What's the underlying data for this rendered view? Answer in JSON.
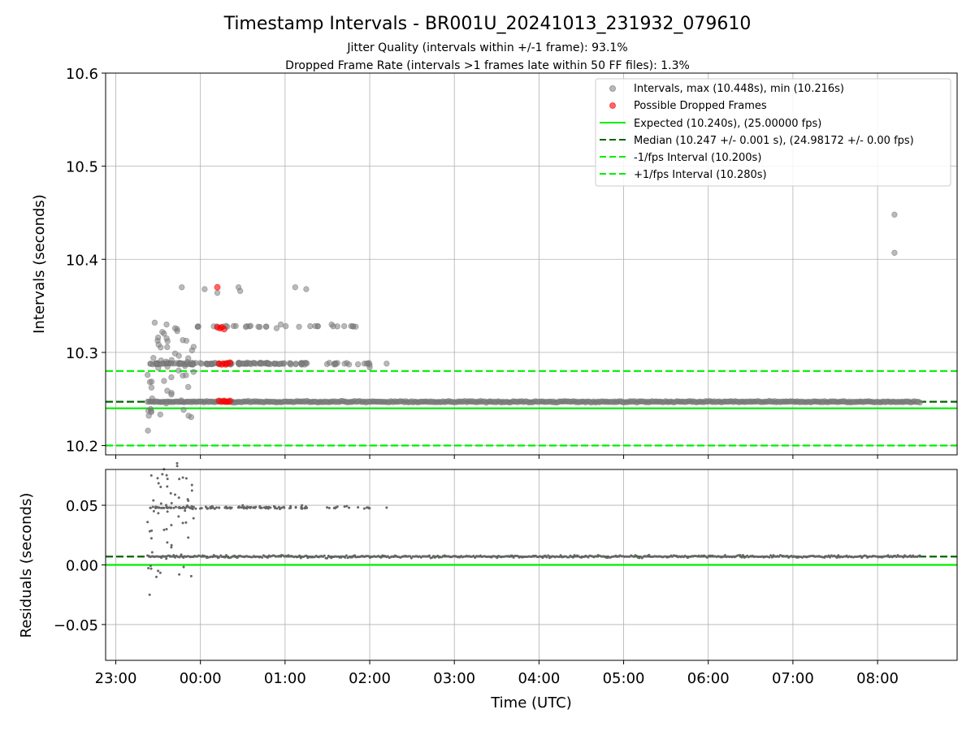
{
  "chart_data": [
    {
      "type": "scatter",
      "title": "Timestamp Intervals - BR001U_20241013_231932_079610",
      "subtitle_lines": [
        "Jitter Quality (intervals within +/-1 frame): 93.1%",
        "Dropped Frame Rate (intervals >1 frames late within 50 FF files): 1.3%"
      ],
      "xlabel": "",
      "ylabel": "Intervals (seconds)",
      "xlim_hours": [
        22.88,
        32.94
      ],
      "ylim": [
        10.19,
        10.6
      ],
      "yticks": [
        10.2,
        10.3,
        10.4,
        10.5,
        10.6
      ],
      "ytick_labels": [
        "10.2",
        "10.3",
        "10.4",
        "10.5",
        "10.6"
      ],
      "grid": true,
      "legend_position": "upper-right",
      "x_range_hours": [
        23.375,
        32.5
      ],
      "series": [
        {
          "name": "Intervals, max (10.448s), min (10.216s)",
          "role": "intervals",
          "color": "#808080",
          "marker": "circle",
          "summary": "dense band near 10.247 s over the whole range; upper bands near 10.288 s and 10.328 s between about 23:20 and 02:10; outliers near 10.368 s and a start-up spread from 10.216 s to 10.332 s",
          "points": [
            [
              23.38,
              10.216
            ],
            [
              23.39,
              10.232
            ],
            [
              23.42,
              10.236
            ],
            [
              23.46,
              10.332
            ],
            [
              23.5,
              10.316
            ],
            [
              23.55,
              10.322
            ],
            [
              23.6,
              10.33
            ],
            [
              23.7,
              10.326
            ],
            [
              23.78,
              10.37
            ],
            [
              23.86,
              10.232
            ],
            [
              23.92,
              10.306
            ],
            [
              24.05,
              10.368
            ],
            [
              24.2,
              10.364
            ],
            [
              24.45,
              10.37
            ],
            [
              24.47,
              10.366
            ],
            [
              25.12,
              10.37
            ],
            [
              25.25,
              10.368
            ],
            [
              24.9,
              10.326
            ],
            [
              24.95,
              10.33
            ],
            [
              25.55,
              10.33
            ],
            [
              25.8,
              10.328
            ],
            [
              26.0,
              10.284
            ],
            [
              26.2,
              10.288
            ],
            [
              32.2,
              10.448
            ],
            [
              32.2,
              10.407
            ]
          ]
        },
        {
          "name": "Possible Dropped Frames",
          "role": "dropped",
          "color": "#ff0000",
          "marker": "circle",
          "points": [
            [
              24.2,
              10.37
            ],
            [
              24.2,
              10.327
            ],
            [
              24.23,
              10.326
            ],
            [
              24.25,
              10.327
            ],
            [
              24.28,
              10.325
            ],
            [
              24.22,
              10.288
            ],
            [
              24.25,
              10.287
            ],
            [
              24.27,
              10.288
            ],
            [
              24.3,
              10.287
            ],
            [
              24.32,
              10.288
            ],
            [
              24.35,
              10.289
            ],
            [
              24.22,
              10.248
            ],
            [
              24.25,
              10.247
            ],
            [
              24.28,
              10.248
            ],
            [
              24.3,
              10.247
            ],
            [
              24.33,
              10.247
            ],
            [
              24.35,
              10.248
            ]
          ]
        }
      ],
      "reference_lines": [
        {
          "name": "Expected (10.240s), (25.00000 fps)",
          "y": 10.24,
          "color": "#00ee00",
          "style": "solid"
        },
        {
          "name": "Median (10.247 +/- 0.001 s), (24.98172 +/- 0.00 fps)",
          "y": 10.247,
          "color": "#006400",
          "style": "dashed"
        },
        {
          "name": "-1/fps Interval (10.200s)",
          "y": 10.2,
          "color": "#00ee00",
          "style": "dashed"
        },
        {
          "name": "+1/fps Interval (10.280s)",
          "y": 10.28,
          "color": "#00ee00",
          "style": "dashed"
        }
      ]
    },
    {
      "type": "scatter",
      "title": "",
      "xlabel": "Time (UTC)",
      "ylabel": "Residuals (seconds)",
      "xlim_hours": [
        22.88,
        32.94
      ],
      "ylim": [
        -0.08,
        0.08
      ],
      "yticks": [
        -0.05,
        0.0,
        0.05
      ],
      "ytick_labels": [
        "−0.05",
        "0.00",
        "0.05"
      ],
      "xticks_hours": [
        23,
        24,
        25,
        26,
        27,
        28,
        29,
        30,
        31,
        32
      ],
      "xtick_labels": [
        "23:00",
        "00:00",
        "01:00",
        "02:00",
        "03:00",
        "04:00",
        "05:00",
        "06:00",
        "07:00",
        "08:00"
      ],
      "grid": true,
      "series": [
        {
          "role": "residuals",
          "color": "#666666",
          "marker": "circle",
          "summary": "dense band near 0.007 s across the whole range; upper band near 0.048 s until about 02:10; start-up spread from -0.025 s to 0.076 s",
          "points": [
            [
              23.4,
              -0.025
            ],
            [
              23.42,
              0.075
            ],
            [
              23.55,
              0.076
            ],
            [
              23.65,
              0.06
            ],
            [
              23.75,
              0.072
            ],
            [
              23.9,
              0.067
            ],
            [
              23.5,
              -0.005
            ],
            [
              23.48,
              -0.01
            ],
            [
              23.75,
              -0.008
            ],
            [
              24.5,
              0.05
            ],
            [
              25.2,
              0.05
            ],
            [
              26.2,
              0.048
            ],
            [
              23.6,
              0.03
            ],
            [
              23.45,
              0.045
            ],
            [
              23.85,
              0.055
            ]
          ]
        }
      ],
      "reference_lines": [
        {
          "y": 0.0,
          "color": "#00ee00",
          "style": "solid"
        },
        {
          "y": 0.007,
          "color": "#006400",
          "style": "dashed"
        }
      ]
    }
  ]
}
